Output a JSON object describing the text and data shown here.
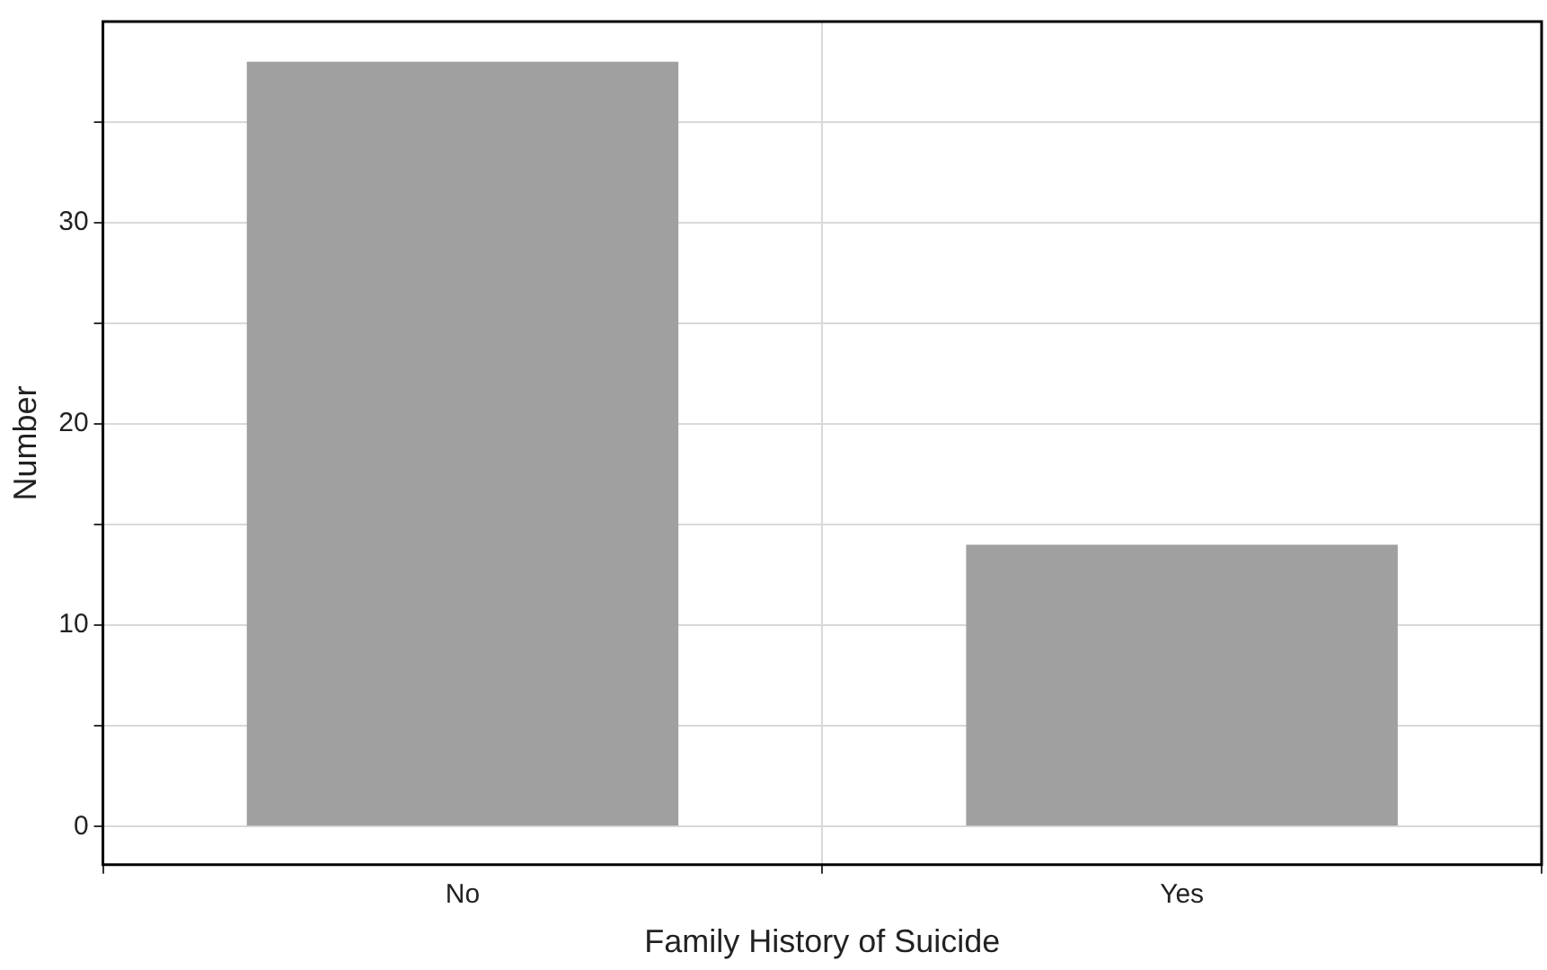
{
  "chart_data": {
    "type": "bar",
    "xlabel": "Family History of Suicide",
    "ylabel": "Number",
    "categories": [
      "No",
      "Yes"
    ],
    "values": [
      38,
      14
    ],
    "color": "#a0a0a0",
    "ylim": [
      -1.9,
      40
    ],
    "yticks": [
      0,
      {
        "value": 5,
        "label": null
      },
      10,
      {
        "value": 15,
        "label": null
      },
      20,
      {
        "value": 25,
        "label": null
      },
      30,
      {
        "value": 35,
        "label": null
      }
    ],
    "grid": true,
    "legend": false
  }
}
